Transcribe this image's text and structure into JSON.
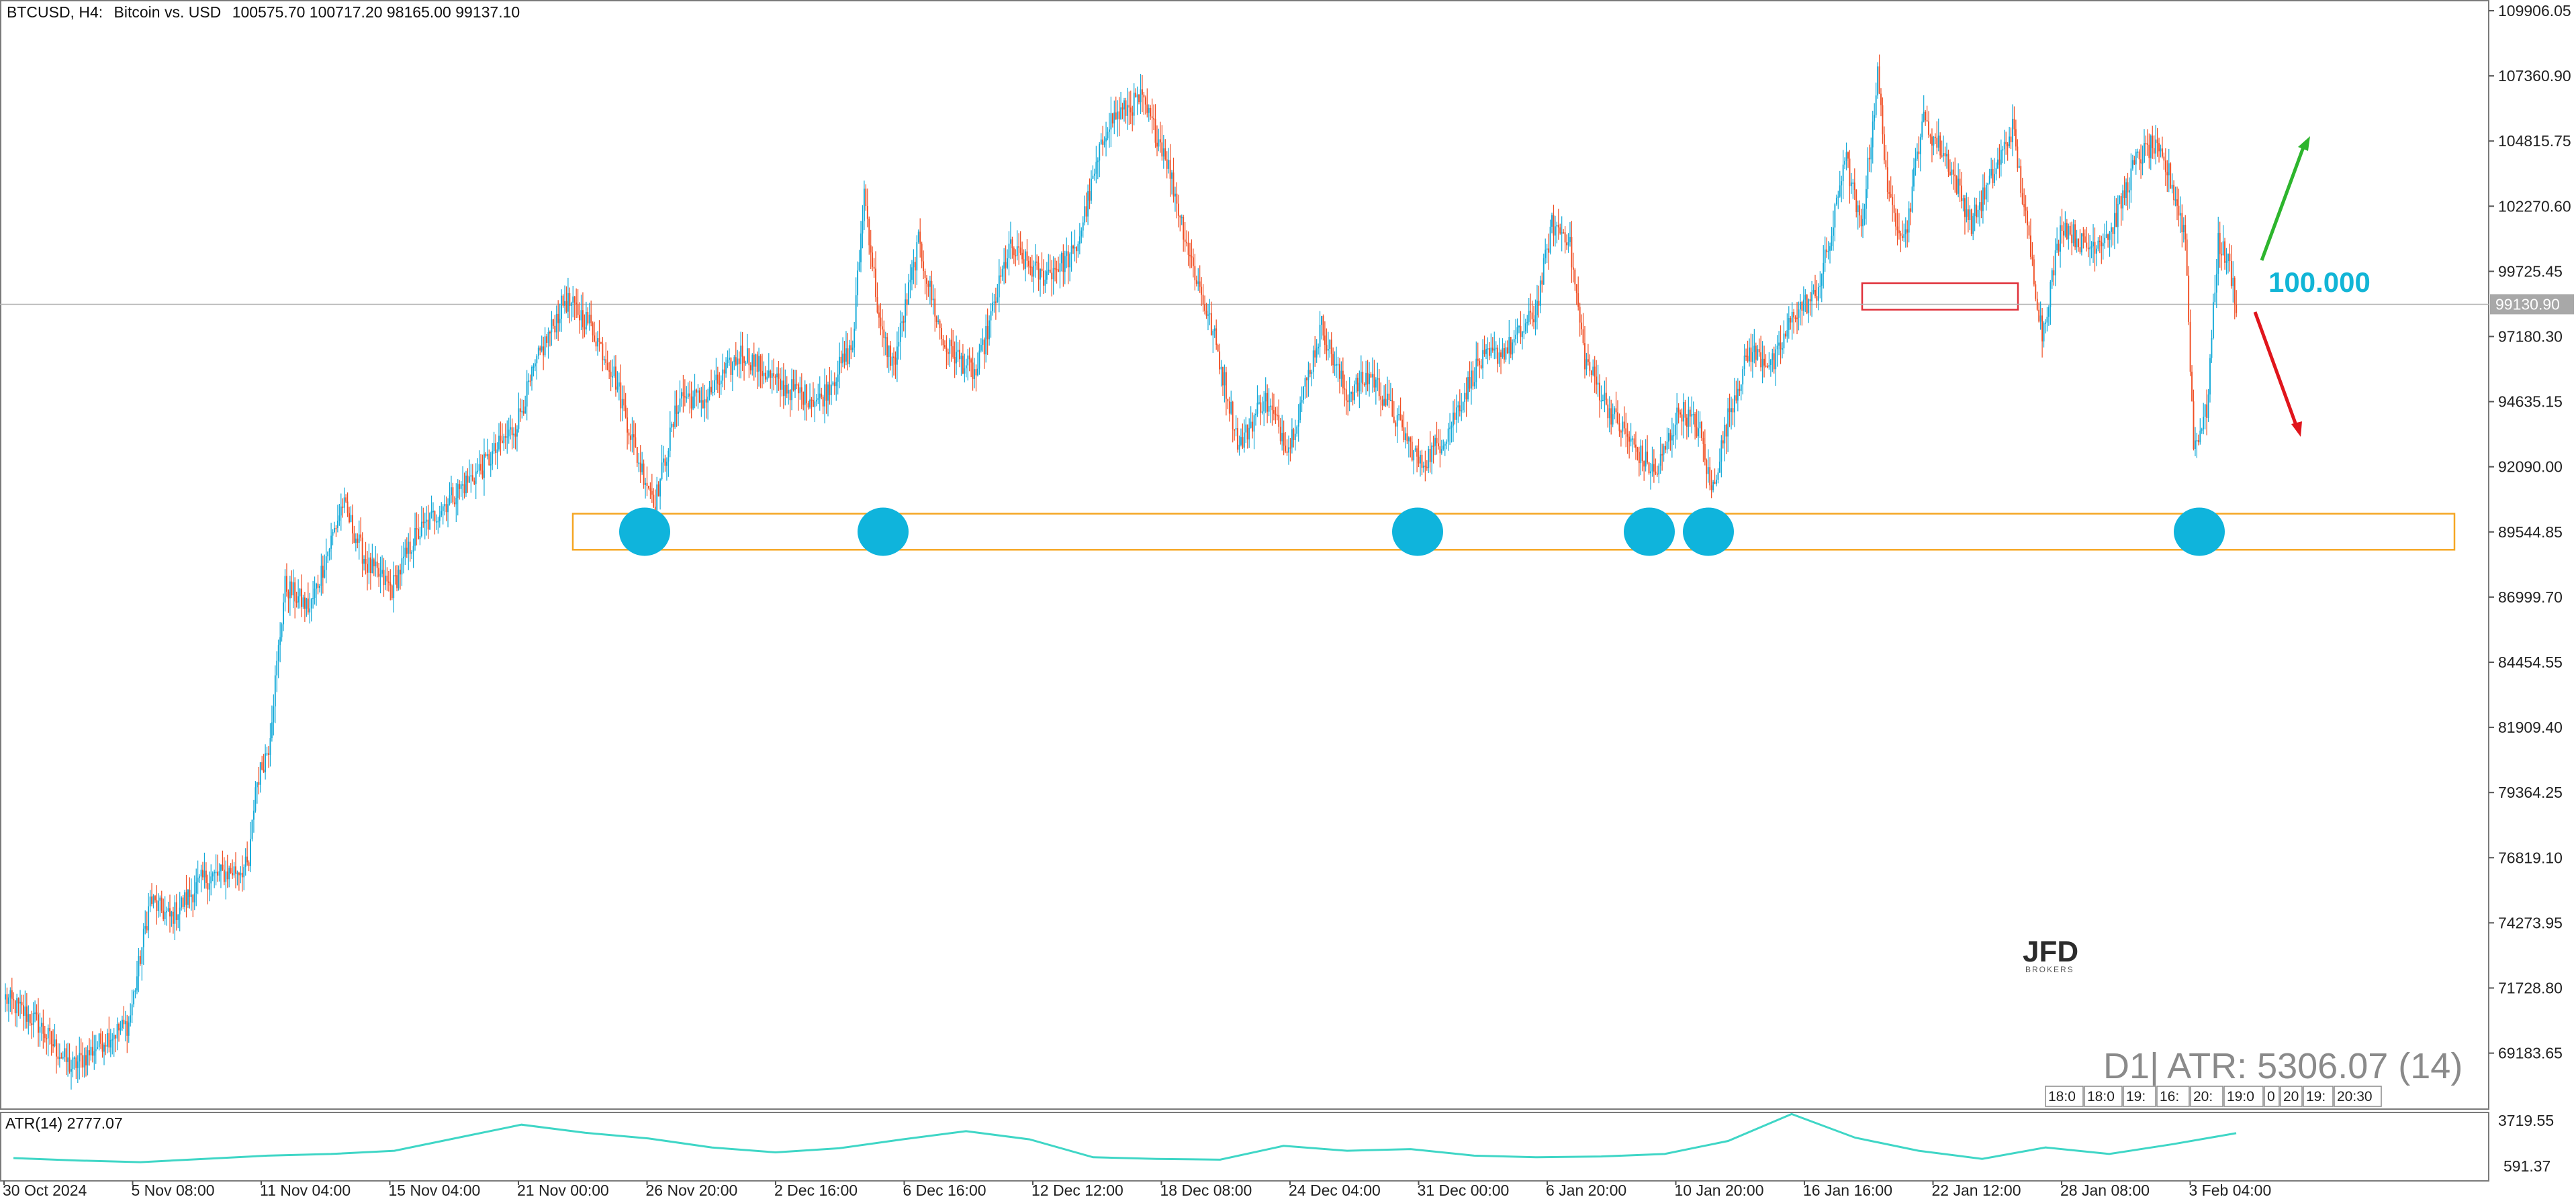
{
  "header": {
    "symbol": "BTCUSD, H4:",
    "description": "Bitcoin vs. USD",
    "ohlc": "100575.70 100717.20 98165.00 99137.10"
  },
  "price_axis": {
    "ticks": [
      "109906.05",
      "107360.90",
      "104815.75",
      "102270.60",
      "99725.45",
      "97180.30",
      "94635.15",
      "92090.00",
      "89544.85",
      "86999.70",
      "84454.55",
      "81909.40",
      "79364.25",
      "76819.10",
      "74273.95",
      "71728.80",
      "69183.65"
    ],
    "current_price_label": "99130.90",
    "current_price": 99130.9
  },
  "time_axis": {
    "labels": [
      "30 Oct 2024",
      "5 Nov 08:00",
      "11 Nov 04:00",
      "15 Nov 04:00",
      "21 Nov 00:00",
      "26 Nov 20:00",
      "2 Dec 16:00",
      "6 Dec 16:00",
      "12 Dec 12:00",
      "18 Dec 08:00",
      "24 Dec 04:00",
      "31 Dec 00:00",
      "6 Jan 20:00",
      "10 Jan 20:00",
      "16 Jan 16:00",
      "22 Jan 12:00",
      "28 Jan 08:00",
      "3 Feb 04:00"
    ]
  },
  "indicator": {
    "title": "ATR(14) 2777.07",
    "axis_ticks": [
      "3719.55",
      "591.37"
    ]
  },
  "overlay": {
    "atr_text": "D1| ATR: 5306.07 (14)",
    "level_label": "100.000",
    "history_cells": [
      "18:0",
      "18:0",
      "19:",
      "16:",
      "20:",
      "19:0",
      "0",
      "20",
      "19:",
      "20:30"
    ]
  },
  "logo": {
    "text": "JFD",
    "subtext": "BROKERS"
  },
  "colors": {
    "bull": "#12a9d8",
    "bear": "#f04e23",
    "support_zone": "#f5a623",
    "resistance_box": "#e0303a",
    "touch_marker": "#0fb4dc",
    "arrow_up": "#2db52d",
    "arrow_down": "#e0151c",
    "atr_line": "#3fd6c6"
  },
  "chart_data": {
    "type": "candlestick",
    "symbol": "BTCUSD",
    "timeframe": "H4",
    "y_range": [
      67910,
      110630
    ],
    "annotations": {
      "support_zone": [
        89600,
        91000
      ],
      "resistance_box": [
        98920,
        99950
      ],
      "horizontal_level": 99130.9,
      "touch_markers_at": [
        "24 Nov",
        "4 Dec",
        "26 Dec",
        "8 Jan",
        "10 Jan",
        "3 Feb"
      ]
    },
    "anchors": [
      {
        "t": 0,
        "p": 72200
      },
      {
        "t": 20,
        "p": 71200
      },
      {
        "t": 30,
        "p": 70300
      },
      {
        "t": 40,
        "p": 69500
      },
      {
        "t": 50,
        "p": 70000
      },
      {
        "t": 60,
        "p": 70600
      },
      {
        "t": 75,
        "p": 71200
      },
      {
        "t": 88,
        "p": 76000
      },
      {
        "t": 100,
        "p": 75300
      },
      {
        "t": 120,
        "p": 76800
      },
      {
        "t": 148,
        "p": 77300
      },
      {
        "t": 152,
        "p": 80400
      },
      {
        "t": 160,
        "p": 82000
      },
      {
        "t": 170,
        "p": 88200
      },
      {
        "t": 185,
        "p": 87300
      },
      {
        "t": 205,
        "p": 91400
      },
      {
        "t": 220,
        "p": 89000
      },
      {
        "t": 235,
        "p": 88100
      },
      {
        "t": 248,
        "p": 90000
      },
      {
        "t": 270,
        "p": 91600
      },
      {
        "t": 290,
        "p": 92800
      },
      {
        "t": 310,
        "p": 94400
      },
      {
        "t": 325,
        "p": 97200
      },
      {
        "t": 340,
        "p": 99300
      },
      {
        "t": 355,
        "p": 98400
      },
      {
        "t": 370,
        "p": 96400
      },
      {
        "t": 385,
        "p": 93000
      },
      {
        "t": 395,
        "p": 91500
      },
      {
        "t": 410,
        "p": 95600
      },
      {
        "t": 425,
        "p": 95400
      },
      {
        "t": 448,
        "p": 97300
      },
      {
        "t": 470,
        "p": 96000
      },
      {
        "t": 495,
        "p": 95400
      },
      {
        "t": 515,
        "p": 97500
      },
      {
        "t": 522,
        "p": 103500
      },
      {
        "t": 532,
        "p": 98000
      },
      {
        "t": 540,
        "p": 96800
      },
      {
        "t": 555,
        "p": 101500
      },
      {
        "t": 570,
        "p": 97600
      },
      {
        "t": 590,
        "p": 96400
      },
      {
        "t": 610,
        "p": 101300
      },
      {
        "t": 630,
        "p": 100200
      },
      {
        "t": 650,
        "p": 101100
      },
      {
        "t": 670,
        "p": 106200
      },
      {
        "t": 690,
        "p": 107100
      },
      {
        "t": 705,
        "p": 105000
      },
      {
        "t": 720,
        "p": 101000
      },
      {
        "t": 735,
        "p": 97800
      },
      {
        "t": 750,
        "p": 93600
      },
      {
        "t": 765,
        "p": 95500
      },
      {
        "t": 780,
        "p": 93600
      },
      {
        "t": 800,
        "p": 98300
      },
      {
        "t": 815,
        "p": 95600
      },
      {
        "t": 830,
        "p": 96400
      },
      {
        "t": 845,
        "p": 94700
      },
      {
        "t": 860,
        "p": 92900
      },
      {
        "t": 875,
        "p": 94000
      },
      {
        "t": 895,
        "p": 96800
      },
      {
        "t": 915,
        "p": 97500
      },
      {
        "t": 930,
        "p": 98800
      },
      {
        "t": 940,
        "p": 102200
      },
      {
        "t": 950,
        "p": 101800
      },
      {
        "t": 960,
        "p": 97000
      },
      {
        "t": 975,
        "p": 95000
      },
      {
        "t": 990,
        "p": 93600
      },
      {
        "t": 1003,
        "p": 92500
      },
      {
        "t": 1018,
        "p": 95100
      },
      {
        "t": 1030,
        "p": 94200
      },
      {
        "t": 1037,
        "p": 91800
      },
      {
        "t": 1048,
        "p": 95000
      },
      {
        "t": 1060,
        "p": 97300
      },
      {
        "t": 1075,
        "p": 96800
      },
      {
        "t": 1088,
        "p": 98900
      },
      {
        "t": 1100,
        "p": 99400
      },
      {
        "t": 1110,
        "p": 101800
      },
      {
        "t": 1118,
        "p": 105000
      },
      {
        "t": 1128,
        "p": 102000
      },
      {
        "t": 1138,
        "p": 108000
      },
      {
        "t": 1145,
        "p": 103000
      },
      {
        "t": 1155,
        "p": 101800
      },
      {
        "t": 1165,
        "p": 106300
      },
      {
        "t": 1180,
        "p": 104800
      },
      {
        "t": 1195,
        "p": 102300
      },
      {
        "t": 1210,
        "p": 104400
      },
      {
        "t": 1220,
        "p": 106000
      },
      {
        "t": 1230,
        "p": 101500
      },
      {
        "t": 1238,
        "p": 98000
      },
      {
        "t": 1250,
        "p": 102300
      },
      {
        "t": 1265,
        "p": 101300
      },
      {
        "t": 1280,
        "p": 102000
      },
      {
        "t": 1295,
        "p": 104700
      },
      {
        "t": 1305,
        "p": 105300
      },
      {
        "t": 1315,
        "p": 104200
      },
      {
        "t": 1325,
        "p": 101800
      },
      {
        "t": 1330,
        "p": 93600
      },
      {
        "t": 1338,
        "p": 95000
      },
      {
        "t": 1345,
        "p": 101600
      },
      {
        "t": 1352,
        "p": 100600
      },
      {
        "t": 1356,
        "p": 99137
      }
    ],
    "atr_series": {
      "name": "ATR(14)",
      "values": [
        1250,
        1100,
        1000,
        1200,
        1400,
        1500,
        1700,
        2500,
        3300,
        2800,
        2450,
        1900,
        1600,
        1850,
        2400,
        2900,
        2400,
        1300,
        1200,
        1150,
        2000,
        1700,
        1800,
        1400,
        1300,
        1350,
        1500,
        2300,
        3950,
        2500,
        1700,
        1200,
        1900,
        1500,
        2100,
        2777
      ]
    }
  }
}
